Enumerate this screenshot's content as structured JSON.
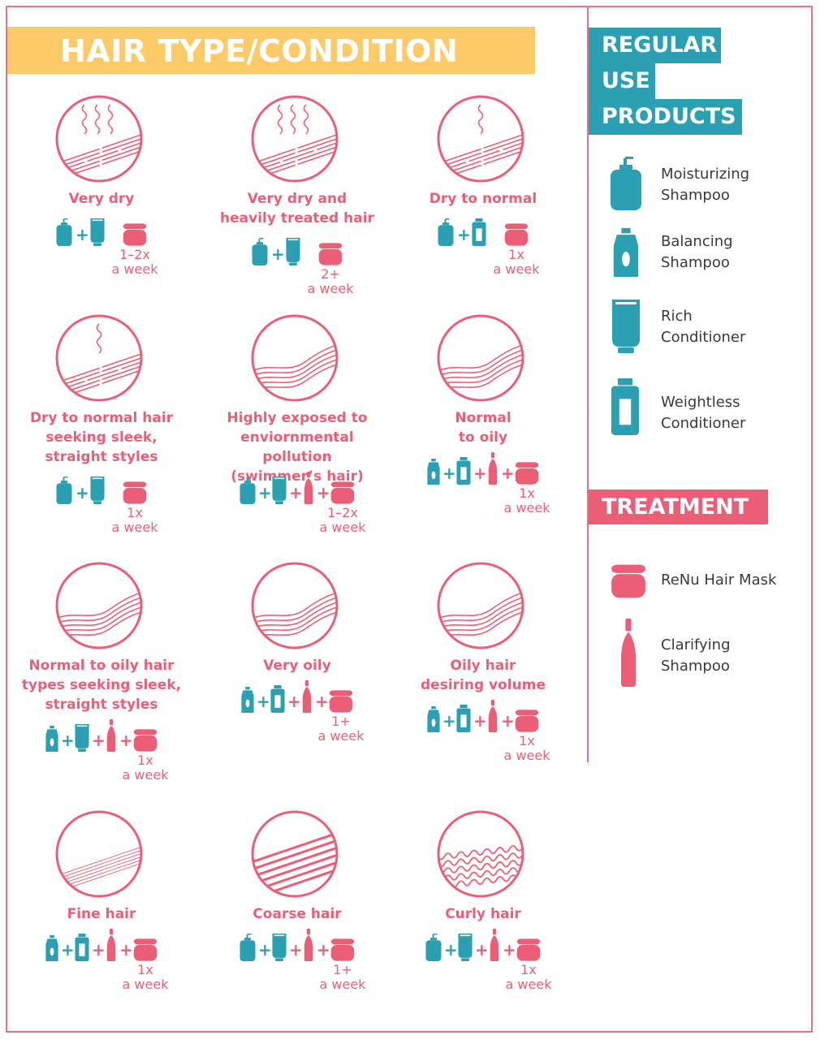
{
  "header": {
    "title": "HAIR TYPE/CONDITION"
  },
  "legend": {
    "regular_heading": [
      "REGULAR",
      "USE",
      "PRODUCTS"
    ],
    "regular_items": [
      {
        "icon": "moisturizing-shampoo-icon",
        "line1": "Moisturizing",
        "line2": "Shampoo"
      },
      {
        "icon": "balancing-shampoo-icon",
        "line1": "Balancing",
        "line2": "Shampoo"
      },
      {
        "icon": "rich-conditioner-icon",
        "line1": "Rich",
        "line2": "Conditioner"
      },
      {
        "icon": "weightless-conditioner-icon",
        "line1": "Weightless",
        "line2": "Conditioner"
      }
    ],
    "treatment_heading": "TREATMENT",
    "treatment_items": [
      {
        "icon": "hair-mask-icon",
        "line1": "ReNu Hair Mask",
        "line2": ""
      },
      {
        "icon": "clarifying-shampoo-icon",
        "line1": "Clarifying",
        "line2": "Shampoo"
      }
    ]
  },
  "colors": {
    "teal": "#2ba0b2",
    "pink": "#ec5e75",
    "yellow": "#fcca66"
  },
  "conditions": [
    {
      "name": [
        "Very dry"
      ],
      "steam": 3,
      "hair": "straight",
      "products": [
        "moisturizing-shampoo",
        "rich-conditioner",
        "hair-mask"
      ],
      "freq": [
        "1–2x",
        "a week"
      ]
    },
    {
      "name": [
        "Very dry and",
        "heavily treated hair"
      ],
      "steam": 3,
      "hair": "straight",
      "products": [
        "moisturizing-shampoo",
        "rich-conditioner",
        "hair-mask"
      ],
      "freq": [
        "2+",
        "a week"
      ]
    },
    {
      "name": [
        "Dry to normal"
      ],
      "steam": 1,
      "hair": "straight",
      "products": [
        "moisturizing-shampoo",
        "weightless-conditioner",
        "hair-mask"
      ],
      "freq": [
        "1x",
        "a week"
      ]
    },
    {
      "name": [
        "Dry to normal hair",
        "seeking sleek,",
        "straight styles"
      ],
      "steam": 1,
      "hair": "straight",
      "products": [
        "moisturizing-shampoo",
        "rich-conditioner",
        "hair-mask"
      ],
      "freq": [
        "1x",
        "a week"
      ]
    },
    {
      "name": [
        "Highly exposed to",
        "enviornmental pollution",
        "(swimmer’s hair)"
      ],
      "steam": 0,
      "hair": "wavy",
      "products": [
        "moisturizing-shampoo",
        "rich-conditioner",
        "clarifying-shampoo",
        "hair-mask"
      ],
      "freq": [
        "1–2x",
        "a week"
      ]
    },
    {
      "name": [
        "Normal",
        "to oily"
      ],
      "steam": 0,
      "hair": "wavy",
      "products": [
        "balancing-shampoo",
        "weightless-conditioner",
        "clarifying-shampoo",
        "hair-mask"
      ],
      "freq": [
        "1x",
        "a week"
      ]
    },
    {
      "name": [
        "Normal to oily hair",
        "types seeking sleek,",
        "straight styles"
      ],
      "steam": 0,
      "hair": "wavy",
      "products": [
        "balancing-shampoo",
        "rich-conditioner",
        "clarifying-shampoo",
        "hair-mask"
      ],
      "freq": [
        "1x",
        "a week"
      ]
    },
    {
      "name": [
        "Very oily"
      ],
      "steam": 0,
      "hair": "wavy",
      "products": [
        "balancing-shampoo",
        "weightless-conditioner",
        "clarifying-shampoo",
        "hair-mask"
      ],
      "freq": [
        "1+",
        "a week"
      ]
    },
    {
      "name": [
        "Oily hair",
        "desiring volume"
      ],
      "steam": 0,
      "hair": "wavy",
      "products": [
        "balancing-shampoo",
        "weightless-conditioner",
        "clarifying-shampoo",
        "hair-mask"
      ],
      "freq": [
        "1x",
        "a week"
      ]
    },
    {
      "name": [
        "Fine hair"
      ],
      "steam": 0,
      "hair": "fine",
      "products": [
        "balancing-shampoo",
        "weightless-conditioner",
        "clarifying-shampoo",
        "hair-mask"
      ],
      "freq": [
        "1x",
        "a week"
      ]
    },
    {
      "name": [
        "Coarse hair"
      ],
      "steam": 0,
      "hair": "coarse",
      "products": [
        "moisturizing-shampoo",
        "rich-conditioner",
        "clarifying-shampoo",
        "hair-mask"
      ],
      "freq": [
        "1+",
        "a week"
      ]
    },
    {
      "name": [
        "Curly hair"
      ],
      "steam": 0,
      "hair": "curly",
      "products": [
        "moisturizing-shampoo",
        "rich-conditioner",
        "clarifying-shampoo",
        "hair-mask"
      ],
      "freq": [
        "1x",
        "a week"
      ]
    }
  ]
}
